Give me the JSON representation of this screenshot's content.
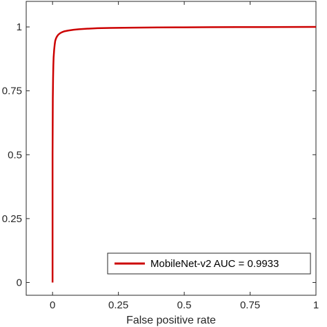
{
  "chart_data": {
    "type": "line",
    "title": "",
    "xlabel": "False positive rate",
    "ylabel": "",
    "xlim": [
      -0.1,
      1
    ],
    "ylim": [
      -0.05,
      1.1
    ],
    "grid": false,
    "legend_position": "bottom-right",
    "x_ticks": [
      0,
      0.25,
      0.5,
      0.75,
      1
    ],
    "x_tick_labels": [
      "0",
      "0.25",
      "0.5",
      "0.75",
      "1"
    ],
    "y_ticks": [
      0,
      0.25,
      0.5,
      0.75,
      1
    ],
    "y_tick_labels": [
      "0",
      "0.25",
      "0.5",
      "0.75",
      "1"
    ],
    "series": [
      {
        "name": "MobileNet-v2 AUC = 0.9933",
        "color": "#cc0000",
        "x": [
          0,
          0,
          0.001,
          0.002,
          0.003,
          0.004,
          0.006,
          0.008,
          0.01,
          0.013,
          0.017,
          0.022,
          0.028,
          0.035,
          0.045,
          0.06,
          0.08,
          0.1,
          0.13,
          0.17,
          0.22,
          0.3,
          0.4,
          0.5,
          0.6,
          0.7,
          0.8,
          0.9,
          1
        ],
        "y": [
          0,
          0.5,
          0.72,
          0.8,
          0.85,
          0.88,
          0.91,
          0.93,
          0.945,
          0.955,
          0.963,
          0.97,
          0.975,
          0.979,
          0.983,
          0.986,
          0.989,
          0.991,
          0.993,
          0.995,
          0.996,
          0.997,
          0.998,
          0.9985,
          0.999,
          0.9993,
          0.9996,
          0.9998,
          1
        ]
      }
    ]
  }
}
